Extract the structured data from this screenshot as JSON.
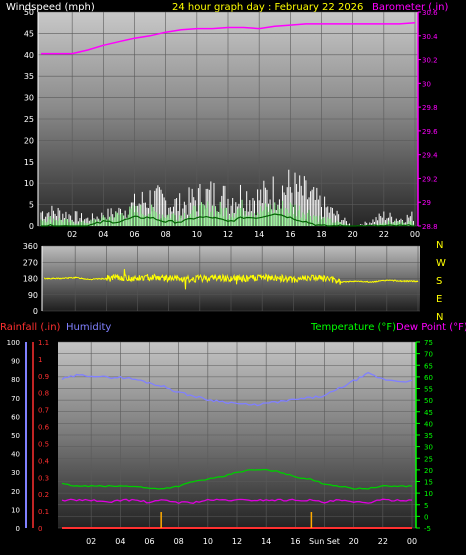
{
  "header": {
    "left_label": "Windspeed (mph)",
    "center_title": "24 hour graph day : February 22 2026",
    "right_label": "Barometer (.in)"
  },
  "colors": {
    "background": "#000000",
    "wind_white": "#ffffff",
    "wind_green": "#00ff00",
    "barometer": "#ff00ff",
    "direction": "#ffff00",
    "humidity": "#8080ff",
    "temperature": "#00cc00",
    "dew_point": "#dd00dd",
    "rainfall": "#ff3030",
    "sun_marker": "#ffaa00",
    "title_yellow": "#ffff00"
  },
  "chart_data": [
    {
      "type": "line",
      "name": "wind-and-barometer",
      "x_tick_labels": [
        "02",
        "04",
        "06",
        "08",
        "10",
        "12",
        "14",
        "16",
        "18",
        "20",
        "22",
        "00"
      ],
      "left_axis": {
        "label": "Windspeed (mph)",
        "range": [
          0,
          50
        ],
        "ticks": [
          "0",
          "5",
          "10",
          "15",
          "20",
          "25",
          "30",
          "35",
          "40",
          "45",
          "50"
        ]
      },
      "right_axis": {
        "label": "Barometer (.in)",
        "range": [
          28.8,
          30.6
        ],
        "ticks": [
          "28.8",
          "29",
          "29.2",
          "29.4",
          "29.6",
          "29.8",
          "30",
          "30.2",
          "30.4",
          "30.6"
        ]
      },
      "series": [
        {
          "name": "Barometer",
          "axis": "right",
          "x": [
            0,
            1,
            2,
            3,
            4,
            5,
            6,
            7,
            8,
            9,
            10,
            11,
            12,
            13,
            14,
            15,
            16,
            17,
            18,
            19,
            20,
            21,
            22,
            23,
            24
          ],
          "values": [
            30.25,
            30.25,
            30.25,
            30.28,
            30.32,
            30.35,
            30.38,
            30.4,
            30.43,
            30.45,
            30.46,
            30.46,
            30.47,
            30.47,
            30.46,
            30.48,
            30.49,
            30.5,
            30.5,
            30.5,
            30.5,
            30.5,
            30.5,
            30.5,
            30.51
          ]
        },
        {
          "name": "Gust",
          "axis": "left",
          "x": [
            0,
            1,
            2,
            3,
            4,
            5,
            6,
            7,
            8,
            9,
            10,
            11,
            12,
            13,
            14,
            15,
            16,
            17,
            18,
            19,
            20,
            21,
            22,
            23,
            24
          ],
          "values": [
            4,
            4,
            3,
            2,
            3,
            4,
            6,
            8,
            7,
            6,
            8,
            9,
            8,
            9,
            8,
            10,
            11,
            9,
            6,
            3,
            0,
            1,
            3,
            2,
            3
          ]
        },
        {
          "name": "Average",
          "axis": "left",
          "x": [
            0,
            1,
            2,
            3,
            4,
            5,
            6,
            7,
            8,
            9,
            10,
            11,
            12,
            13,
            14,
            15,
            16,
            17,
            18,
            19,
            20,
            21,
            22,
            23,
            24
          ],
          "values": [
            0,
            0,
            0,
            0,
            1,
            1,
            2,
            2,
            1,
            1,
            2,
            2,
            1,
            2,
            2,
            3,
            2,
            1,
            0,
            0,
            0,
            0,
            0,
            0,
            0
          ]
        },
        {
          "name": "Wind",
          "axis": "left",
          "x": [
            0,
            1,
            2,
            3,
            4,
            5,
            6,
            7,
            8,
            9,
            10,
            11,
            12,
            13,
            14,
            15,
            16,
            17,
            18,
            19,
            20,
            21,
            22,
            23,
            24
          ],
          "values": [
            2,
            2,
            1,
            1,
            2,
            3,
            4,
            4,
            3,
            3,
            4,
            5,
            4,
            5,
            4,
            5,
            5,
            4,
            2,
            1,
            0,
            0,
            1,
            1,
            1
          ]
        }
      ]
    },
    {
      "type": "line",
      "name": "wind-direction",
      "x_tick_labels": [],
      "left_axis": {
        "range": [
          0,
          360
        ],
        "ticks": [
          "0",
          "90",
          "180",
          "270",
          "360"
        ]
      },
      "compass_labels": [
        "N",
        "W",
        "S",
        "E",
        "N"
      ],
      "series": [
        {
          "name": "Direction",
          "x": [
            0,
            1,
            2,
            3,
            4,
            5,
            6,
            7,
            8,
            9,
            10,
            11,
            12,
            13,
            14,
            15,
            16,
            17,
            18,
            19,
            20,
            21,
            22,
            23,
            24
          ],
          "values": [
            180,
            180,
            185,
            175,
            180,
            185,
            180,
            190,
            180,
            175,
            180,
            185,
            180,
            180,
            185,
            180,
            175,
            185,
            180,
            160,
            165,
            160,
            170,
            165,
            165
          ]
        }
      ]
    },
    {
      "type": "line",
      "name": "rain-humidity-temperature",
      "x_tick_labels": [
        "02",
        "04",
        "06",
        "08",
        "10",
        "12",
        "14",
        "16",
        "Sun Set",
        "20",
        "22",
        "00"
      ],
      "header_left": [
        "Rainfall (.in)",
        "Humidity"
      ],
      "header_right": [
        "Temperature (°F)",
        "Dew Point (°F)"
      ],
      "humidity_axis": {
        "range": [
          0,
          100
        ],
        "ticks": [
          "0",
          "10",
          "20",
          "30",
          "40",
          "50",
          "60",
          "70",
          "80",
          "90",
          "100"
        ]
      },
      "rain_axis": {
        "range": [
          0,
          1.1
        ],
        "ticks": [
          "0",
          "0.1",
          "0.2",
          "0.3",
          "0.4",
          "0.5",
          "0.6",
          "0.7",
          "0.8",
          "0.9",
          "1",
          "1.1"
        ]
      },
      "temp_axis": {
        "range": [
          -5,
          75
        ],
        "ticks": [
          "-5",
          "0",
          "5",
          "10",
          "15",
          "20",
          "25",
          "30",
          "35",
          "40",
          "45",
          "50",
          "55",
          "60",
          "65",
          "70",
          "75"
        ]
      },
      "series": [
        {
          "name": "Humidity",
          "axis": "humidity",
          "x": [
            0,
            1,
            2,
            3,
            4,
            5,
            6,
            7,
            8,
            9,
            10,
            11,
            12,
            13,
            14,
            15,
            16,
            17,
            18,
            19,
            20,
            21,
            22,
            23,
            24
          ],
          "values": [
            80,
            82,
            82,
            81,
            81,
            80,
            78,
            76,
            73,
            71,
            69,
            68,
            67,
            66,
            67,
            68,
            69,
            70,
            71,
            75,
            79,
            83,
            80,
            79,
            79
          ]
        },
        {
          "name": "Temperature",
          "axis": "temp",
          "x": [
            0,
            1,
            2,
            3,
            4,
            5,
            6,
            7,
            8,
            9,
            10,
            11,
            12,
            13,
            14,
            15,
            16,
            17,
            18,
            19,
            20,
            21,
            22,
            23,
            24
          ],
          "values": [
            14,
            13,
            13,
            13,
            13,
            13,
            12,
            12,
            13,
            15,
            16,
            17,
            19,
            20,
            20,
            19,
            17,
            16,
            14,
            13,
            12,
            12,
            13,
            13,
            13
          ]
        },
        {
          "name": "Dew Point",
          "axis": "temp",
          "x": [
            0,
            1,
            2,
            3,
            4,
            5,
            6,
            7,
            8,
            9,
            10,
            11,
            12,
            13,
            14,
            15,
            16,
            17,
            18,
            19,
            20,
            21,
            22,
            23,
            24
          ],
          "values": [
            7,
            7,
            7,
            6,
            7,
            7,
            6,
            7,
            6,
            6,
            7,
            7,
            7,
            7,
            7,
            7,
            7,
            7,
            6,
            7,
            6,
            6,
            7,
            7,
            7
          ]
        },
        {
          "name": "Rainfall",
          "axis": "rain",
          "x": [
            0,
            24
          ],
          "values": [
            0,
            0
          ]
        }
      ],
      "sun_markers_hours": [
        6.8,
        17.1
      ]
    }
  ]
}
